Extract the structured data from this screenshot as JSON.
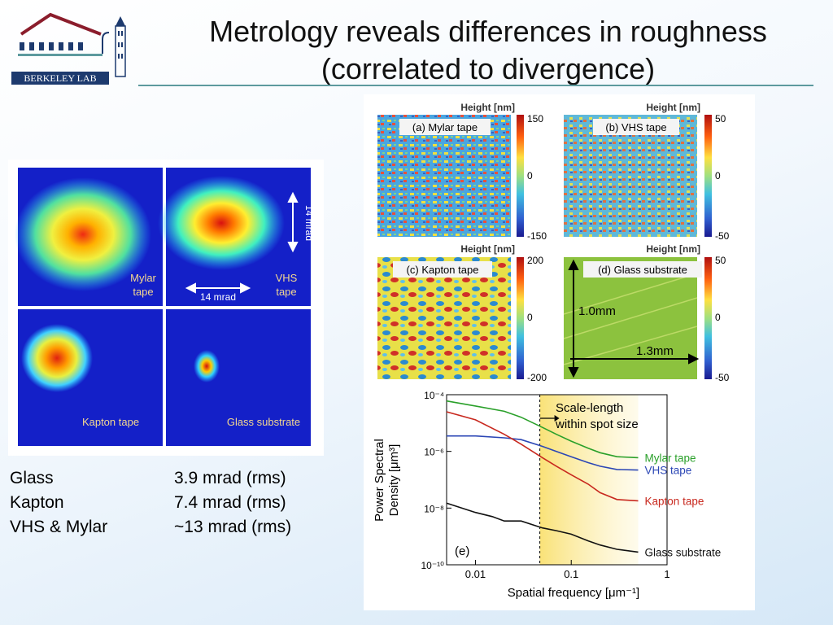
{
  "slide": {
    "title_line1": "Metrology reveals differences in roughness",
    "title_line2": "(correlated to divergence)",
    "logo_text": "BERKELEY LAB"
  },
  "beam_figure": {
    "panels": [
      {
        "label": "Mylar tape"
      },
      {
        "label": "VHS tape"
      },
      {
        "label": "Kapton tape"
      },
      {
        "label": "Glass substrate"
      }
    ],
    "scale_label": "14 mrad"
  },
  "divergence": [
    {
      "material": "Glass",
      "value": "3.9 mrad (rms)"
    },
    {
      "material": "Kapton",
      "value": "7.4 mrad (rms)"
    },
    {
      "material": "VHS & Mylar",
      "value": "~13 mrad (rms)"
    }
  ],
  "height_maps": {
    "colorbar_title": "Height [nm]",
    "panels": [
      {
        "label": "(a) Mylar tape",
        "max": "150",
        "mid": "0",
        "min": "-150"
      },
      {
        "label": "(b) VHS tape",
        "max": "50",
        "mid": "0",
        "min": "-50"
      },
      {
        "label": "(c) Kapton tape",
        "max": "200",
        "mid": "0",
        "min": "-200"
      },
      {
        "label": "(d) Glass substrate",
        "max": "50",
        "mid": "0",
        "min": "-50"
      }
    ],
    "dim_vertical": "1.0mm",
    "dim_horizontal": "1.3mm"
  },
  "chart_data": {
    "type": "line",
    "panel_label": "(e)",
    "xlabel": "Spatial frequency [μm⁻¹]",
    "ylabel": "Power Spectral Density [μm³]",
    "xscale": "log",
    "yscale": "log",
    "xlim": [
      0.005,
      1
    ],
    "ylim": [
      1e-10,
      0.0001
    ],
    "x_ticks": [
      "0.01",
      "0.1",
      "1"
    ],
    "y_ticks": [
      "10⁻¹⁰",
      "10⁻⁸",
      "10⁻⁶",
      "10⁻⁴"
    ],
    "annotation": "Scale-length within spot size",
    "shaded_region_x": [
      0.047,
      0.5
    ],
    "series": [
      {
        "name": "Mylar tape",
        "color": "#2aa02a",
        "points": [
          [
            0.005,
            6e-05
          ],
          [
            0.01,
            4e-05
          ],
          [
            0.02,
            2.6e-05
          ],
          [
            0.03,
            1.6e-05
          ],
          [
            0.05,
            7e-06
          ],
          [
            0.07,
            4e-06
          ],
          [
            0.1,
            2.3e-06
          ],
          [
            0.15,
            1.3e-06
          ],
          [
            0.2,
            9e-07
          ],
          [
            0.3,
            6.5e-07
          ],
          [
            0.5,
            6e-07
          ]
        ]
      },
      {
        "name": "VHS tape",
        "color": "#2b46b5",
        "points": [
          [
            0.005,
            3.5e-06
          ],
          [
            0.01,
            3.5e-06
          ],
          [
            0.02,
            3e-06
          ],
          [
            0.03,
            2.6e-06
          ],
          [
            0.05,
            1.5e-06
          ],
          [
            0.07,
            1e-06
          ],
          [
            0.1,
            6.5e-07
          ],
          [
            0.15,
            4e-07
          ],
          [
            0.2,
            3e-07
          ],
          [
            0.3,
            2.3e-07
          ],
          [
            0.5,
            2.2e-07
          ]
        ]
      },
      {
        "name": "Kapton tape",
        "color": "#c8281e",
        "points": [
          [
            0.005,
            2.5e-05
          ],
          [
            0.01,
            1.3e-05
          ],
          [
            0.02,
            4e-06
          ],
          [
            0.03,
            1.8e-06
          ],
          [
            0.05,
            6e-07
          ],
          [
            0.07,
            3e-07
          ],
          [
            0.1,
            1.5e-07
          ],
          [
            0.15,
            7e-08
          ],
          [
            0.2,
            3.5e-08
          ],
          [
            0.3,
            2e-08
          ],
          [
            0.5,
            1.8e-08
          ]
        ]
      },
      {
        "name": "Glass substrate",
        "color": "#111111",
        "points": [
          [
            0.005,
            1.5e-08
          ],
          [
            0.01,
            7e-09
          ],
          [
            0.015,
            5e-09
          ],
          [
            0.02,
            3.5e-09
          ],
          [
            0.03,
            3.5e-09
          ],
          [
            0.05,
            2e-09
          ],
          [
            0.07,
            1.6e-09
          ],
          [
            0.1,
            1.2e-09
          ],
          [
            0.15,
            7e-10
          ],
          [
            0.2,
            5e-10
          ],
          [
            0.3,
            3.5e-10
          ],
          [
            0.5,
            2.8e-10
          ]
        ]
      }
    ]
  }
}
